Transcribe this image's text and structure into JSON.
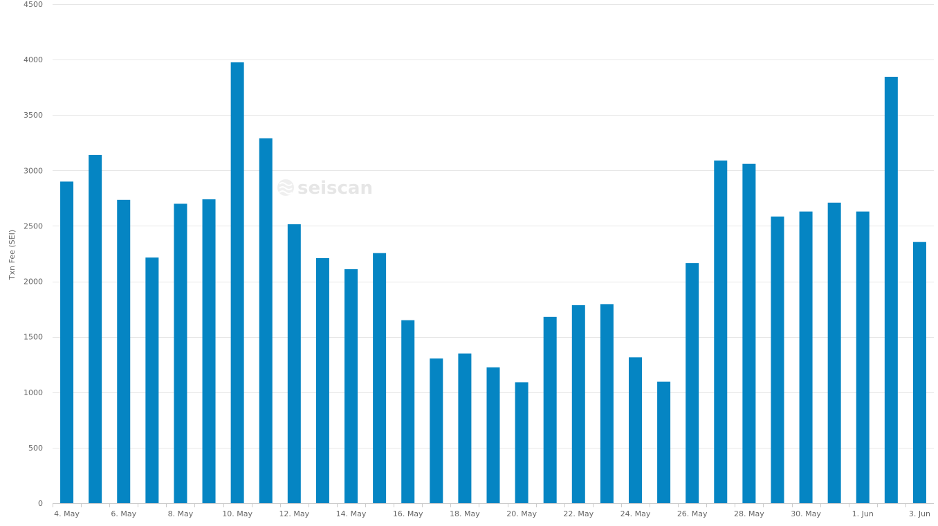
{
  "watermark": {
    "text": "seiscan"
  },
  "chart_data": {
    "type": "bar",
    "title": "",
    "xlabel": "",
    "ylabel": "Txn Fee (SEI)",
    "ylim": [
      0,
      4500
    ],
    "yticks": [
      0,
      500,
      1000,
      1500,
      2000,
      2500,
      3000,
      3500,
      4000,
      4500
    ],
    "grid": true,
    "bar_color": "#0585c3",
    "categories": [
      "4. May",
      "5. May",
      "6. May",
      "7. May",
      "8. May",
      "9. May",
      "10. May",
      "11. May",
      "12. May",
      "13. May",
      "14. May",
      "15. May",
      "16. May",
      "17. May",
      "18. May",
      "19. May",
      "20. May",
      "21. May",
      "22. May",
      "23. May",
      "24. May",
      "25. May",
      "26. May",
      "27. May",
      "28. May",
      "29. May",
      "30. May",
      "31. May",
      "1. Jun",
      "2. Jun",
      "3. Jun"
    ],
    "xtick_labels": [
      "4. May",
      "",
      "6. May",
      "",
      "8. May",
      "",
      "10. May",
      "",
      "12. May",
      "",
      "14. May",
      "",
      "16. May",
      "",
      "18. May",
      "",
      "20. May",
      "",
      "22. May",
      "",
      "24. May",
      "",
      "26. May",
      "",
      "28. May",
      "",
      "30. May",
      "",
      "1. Jun",
      "",
      "3. Jun"
    ],
    "values": [
      2900,
      3140,
      2735,
      2215,
      2700,
      2740,
      3975,
      3290,
      2515,
      2210,
      2110,
      2255,
      1650,
      1305,
      1350,
      1225,
      1090,
      1680,
      1785,
      1795,
      1315,
      1095,
      2165,
      3090,
      3060,
      2585,
      2630,
      2710,
      2630,
      3845,
      2355
    ]
  }
}
